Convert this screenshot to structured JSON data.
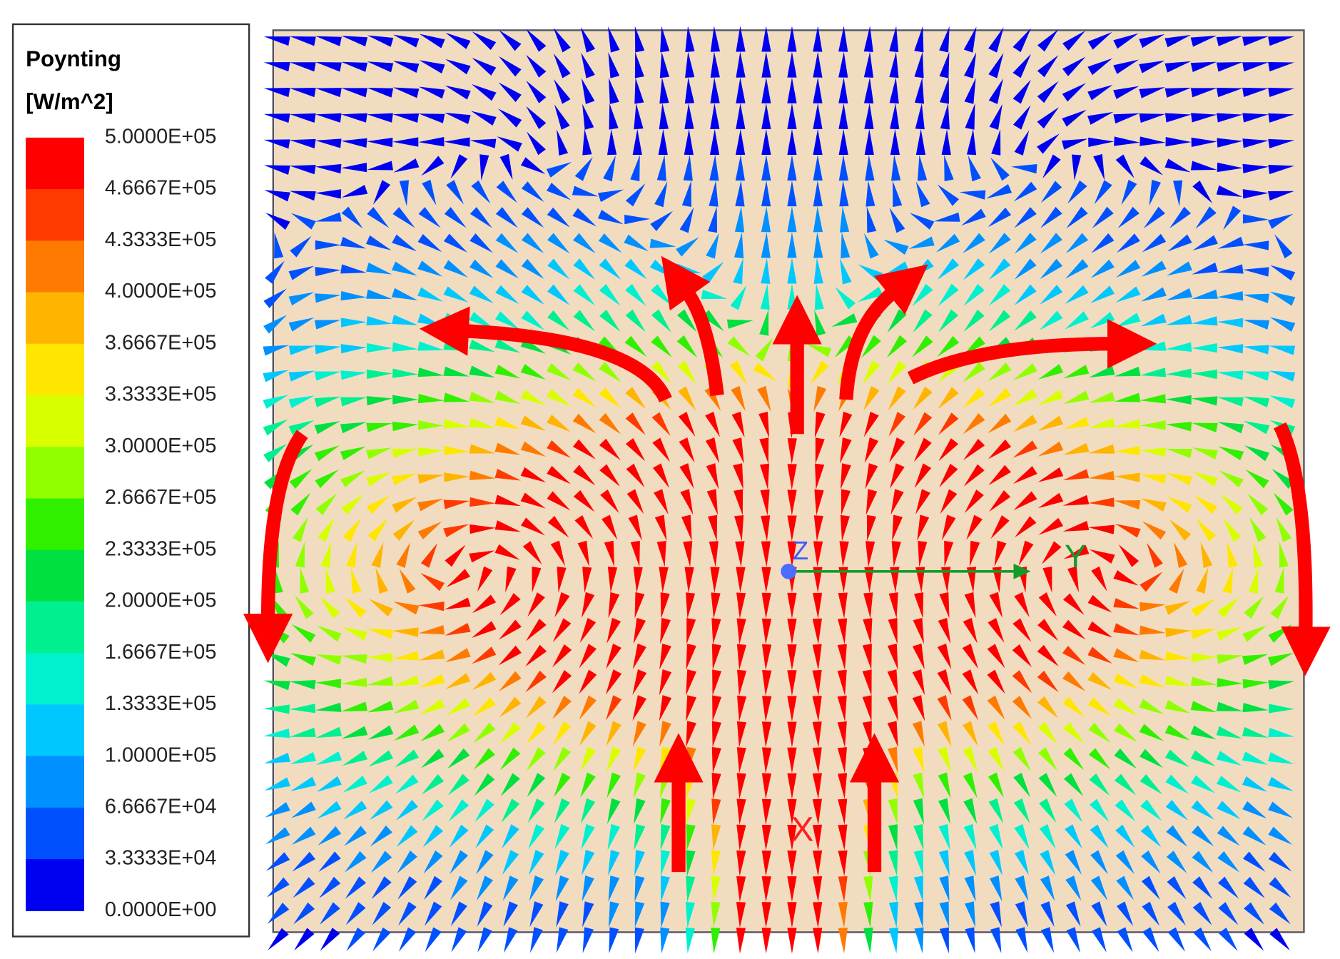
{
  "legend": {
    "title": "Poynting",
    "unit": "[W/m^2]",
    "labels": [
      "5.0000E+05",
      "4.6667E+05",
      "4.3333E+05",
      "4.0000E+05",
      "3.6667E+05",
      "3.3333E+05",
      "3.0000E+05",
      "2.6667E+05",
      "2.3333E+05",
      "2.0000E+05",
      "1.6667E+05",
      "1.3333E+05",
      "1.0000E+05",
      "6.6667E+04",
      "3.3333E+04",
      "0.0000E+00"
    ],
    "colors": [
      "#ff0000",
      "#ff3a00",
      "#ff7a00",
      "#ffb400",
      "#ffe600",
      "#d8ff00",
      "#90ff00",
      "#30f000",
      "#00e040",
      "#00f090",
      "#00f0d0",
      "#00c8ff",
      "#0090ff",
      "#0050ff",
      "#0000f0"
    ]
  },
  "axes": {
    "x": "X",
    "y": "Y",
    "z": "Z"
  }
}
